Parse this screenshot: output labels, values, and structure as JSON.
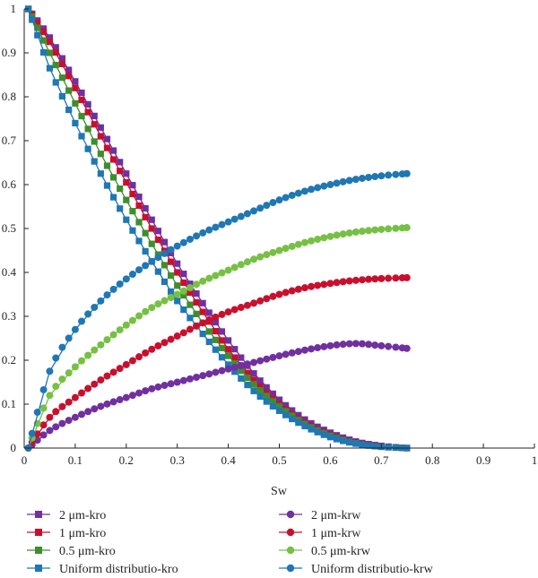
{
  "chart_data": {
    "type": "line",
    "xlabel": "Sw",
    "ylabel": "",
    "xlim": [
      0,
      1
    ],
    "ylim": [
      0,
      1
    ],
    "xticks": [
      "0",
      "0.1",
      "0.2",
      "0.3",
      "0.4",
      "0.5",
      "0.6",
      "0.7",
      "0.8",
      "0.9",
      "1"
    ],
    "yticks": [
      "0",
      "0.1",
      "0.2",
      "0.3",
      "0.4",
      "0.5",
      "0.6",
      "0.7",
      "0.8",
      "0.9",
      "1"
    ],
    "grid": false,
    "legend_position": "bottom",
    "series": [
      {
        "name": "2 μm-kro",
        "marker": "square",
        "color": "#7030a0",
        "points": [
          [
            0.008,
            1.0
          ],
          [
            0.05,
            0.935
          ],
          [
            0.1,
            0.835
          ],
          [
            0.15,
            0.73
          ],
          [
            0.2,
            0.625
          ],
          [
            0.25,
            0.52
          ],
          [
            0.3,
            0.42
          ],
          [
            0.35,
            0.33
          ],
          [
            0.4,
            0.245
          ],
          [
            0.45,
            0.17
          ],
          [
            0.5,
            0.11
          ],
          [
            0.55,
            0.065
          ],
          [
            0.6,
            0.035
          ],
          [
            0.65,
            0.015
          ],
          [
            0.7,
            0.005
          ],
          [
            0.75,
            0.0
          ]
        ]
      },
      {
        "name": "1 μm-kro",
        "marker": "square",
        "color": "#c8102e",
        "points": [
          [
            0.008,
            1.0
          ],
          [
            0.05,
            0.925
          ],
          [
            0.1,
            0.82
          ],
          [
            0.15,
            0.71
          ],
          [
            0.2,
            0.605
          ],
          [
            0.25,
            0.5
          ],
          [
            0.3,
            0.4
          ],
          [
            0.35,
            0.31
          ],
          [
            0.4,
            0.225
          ],
          [
            0.45,
            0.155
          ],
          [
            0.5,
            0.1
          ],
          [
            0.55,
            0.058
          ],
          [
            0.6,
            0.03
          ],
          [
            0.65,
            0.012
          ],
          [
            0.7,
            0.004
          ],
          [
            0.75,
            0.0
          ]
        ]
      },
      {
        "name": "0.5 μm-kro",
        "marker": "square",
        "color": "#3e8e2e",
        "points": [
          [
            0.008,
            1.0
          ],
          [
            0.05,
            0.9
          ],
          [
            0.1,
            0.785
          ],
          [
            0.15,
            0.67
          ],
          [
            0.2,
            0.565
          ],
          [
            0.25,
            0.465
          ],
          [
            0.3,
            0.37
          ],
          [
            0.35,
            0.285
          ],
          [
            0.4,
            0.21
          ],
          [
            0.45,
            0.145
          ],
          [
            0.5,
            0.095
          ],
          [
            0.55,
            0.055
          ],
          [
            0.6,
            0.028
          ],
          [
            0.65,
            0.011
          ],
          [
            0.7,
            0.003
          ],
          [
            0.75,
            0.0
          ]
        ]
      },
      {
        "name": "Uniform distributio-kro",
        "marker": "square",
        "color": "#1f77b4",
        "points": [
          [
            0.008,
            1.0
          ],
          [
            0.05,
            0.865
          ],
          [
            0.1,
            0.74
          ],
          [
            0.15,
            0.625
          ],
          [
            0.2,
            0.52
          ],
          [
            0.25,
            0.425
          ],
          [
            0.3,
            0.335
          ],
          [
            0.35,
            0.26
          ],
          [
            0.4,
            0.19
          ],
          [
            0.45,
            0.13
          ],
          [
            0.5,
            0.085
          ],
          [
            0.55,
            0.05
          ],
          [
            0.6,
            0.025
          ],
          [
            0.65,
            0.01
          ],
          [
            0.7,
            0.003
          ],
          [
            0.75,
            0.0
          ]
        ]
      },
      {
        "name": "2 μm-krw",
        "marker": "circle",
        "color": "#7030a0",
        "points": [
          [
            0.008,
            0.0
          ],
          [
            0.05,
            0.04
          ],
          [
            0.1,
            0.07
          ],
          [
            0.15,
            0.095
          ],
          [
            0.2,
            0.115
          ],
          [
            0.25,
            0.135
          ],
          [
            0.3,
            0.15
          ],
          [
            0.35,
            0.165
          ],
          [
            0.4,
            0.18
          ],
          [
            0.45,
            0.195
          ],
          [
            0.5,
            0.21
          ],
          [
            0.55,
            0.223
          ],
          [
            0.6,
            0.233
          ],
          [
            0.65,
            0.238
          ],
          [
            0.7,
            0.233
          ],
          [
            0.75,
            0.227
          ]
        ]
      },
      {
        "name": "1 μm-krw",
        "marker": "circle",
        "color": "#c8102e",
        "points": [
          [
            0.008,
            0.0
          ],
          [
            0.05,
            0.07
          ],
          [
            0.1,
            0.115
          ],
          [
            0.15,
            0.155
          ],
          [
            0.2,
            0.19
          ],
          [
            0.25,
            0.225
          ],
          [
            0.3,
            0.255
          ],
          [
            0.35,
            0.285
          ],
          [
            0.4,
            0.31
          ],
          [
            0.45,
            0.33
          ],
          [
            0.5,
            0.35
          ],
          [
            0.55,
            0.365
          ],
          [
            0.6,
            0.375
          ],
          [
            0.65,
            0.382
          ],
          [
            0.7,
            0.386
          ],
          [
            0.75,
            0.388
          ]
        ]
      },
      {
        "name": "0.5 μm-krw",
        "marker": "circle",
        "color": "#76c043",
        "points": [
          [
            0.008,
            0.0
          ],
          [
            0.05,
            0.12
          ],
          [
            0.1,
            0.185
          ],
          [
            0.15,
            0.235
          ],
          [
            0.2,
            0.28
          ],
          [
            0.25,
            0.32
          ],
          [
            0.3,
            0.35
          ],
          [
            0.35,
            0.38
          ],
          [
            0.4,
            0.405
          ],
          [
            0.45,
            0.43
          ],
          [
            0.5,
            0.45
          ],
          [
            0.55,
            0.468
          ],
          [
            0.6,
            0.482
          ],
          [
            0.65,
            0.492
          ],
          [
            0.7,
            0.498
          ],
          [
            0.75,
            0.502
          ]
        ]
      },
      {
        "name": "Uniform distributio-krw",
        "marker": "circle",
        "color": "#1f77b4",
        "points": [
          [
            0.008,
            0.0
          ],
          [
            0.05,
            0.175
          ],
          [
            0.1,
            0.27
          ],
          [
            0.15,
            0.335
          ],
          [
            0.2,
            0.385
          ],
          [
            0.25,
            0.425
          ],
          [
            0.3,
            0.46
          ],
          [
            0.35,
            0.49
          ],
          [
            0.4,
            0.515
          ],
          [
            0.45,
            0.54
          ],
          [
            0.5,
            0.565
          ],
          [
            0.55,
            0.585
          ],
          [
            0.6,
            0.6
          ],
          [
            0.65,
            0.612
          ],
          [
            0.7,
            0.62
          ],
          [
            0.75,
            0.625
          ]
        ]
      }
    ]
  }
}
